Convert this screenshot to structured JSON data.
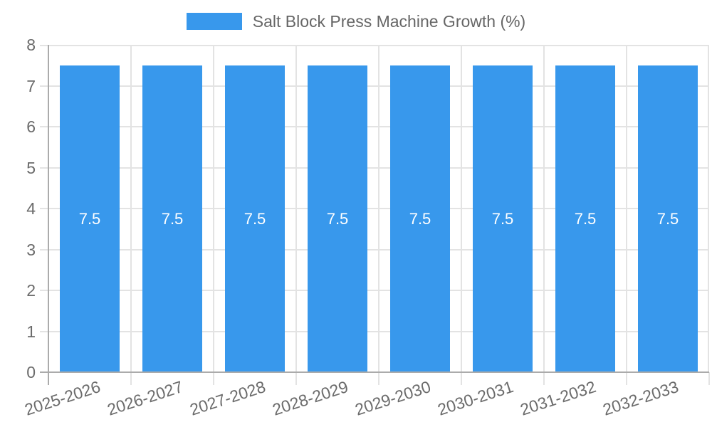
{
  "legend": {
    "label": "Salt Block Press Machine Growth (%)"
  },
  "chart_data": {
    "type": "bar",
    "title": "Salt Block Press Machine Growth (%)",
    "categories": [
      "2025-2026",
      "2026-2027",
      "2027-2028",
      "2028-2029",
      "2029-2030",
      "2030-2031",
      "2031-2032",
      "2032-2033"
    ],
    "series": [
      {
        "name": "Salt Block Press Machine Growth (%)",
        "values": [
          7.5,
          7.5,
          7.5,
          7.5,
          7.5,
          7.5,
          7.5,
          7.5
        ]
      }
    ],
    "bar_labels": [
      "7.5",
      "7.5",
      "7.5",
      "7.5",
      "7.5",
      "7.5",
      "7.5",
      "7.5"
    ],
    "xlabel": "",
    "ylabel": "",
    "ylim": [
      0,
      8
    ],
    "yticks": [
      "0",
      "1",
      "2",
      "3",
      "4",
      "5",
      "6",
      "7",
      "8"
    ],
    "grid": true,
    "legend_position": "top"
  },
  "colors": {
    "bar": "#3898EC",
    "grid": "#e3e3e3",
    "axis": "#ababab",
    "text": "#6b6b6b",
    "legend_text": "#666666",
    "bar_label": "#ffffff",
    "background": "#ffffff"
  }
}
